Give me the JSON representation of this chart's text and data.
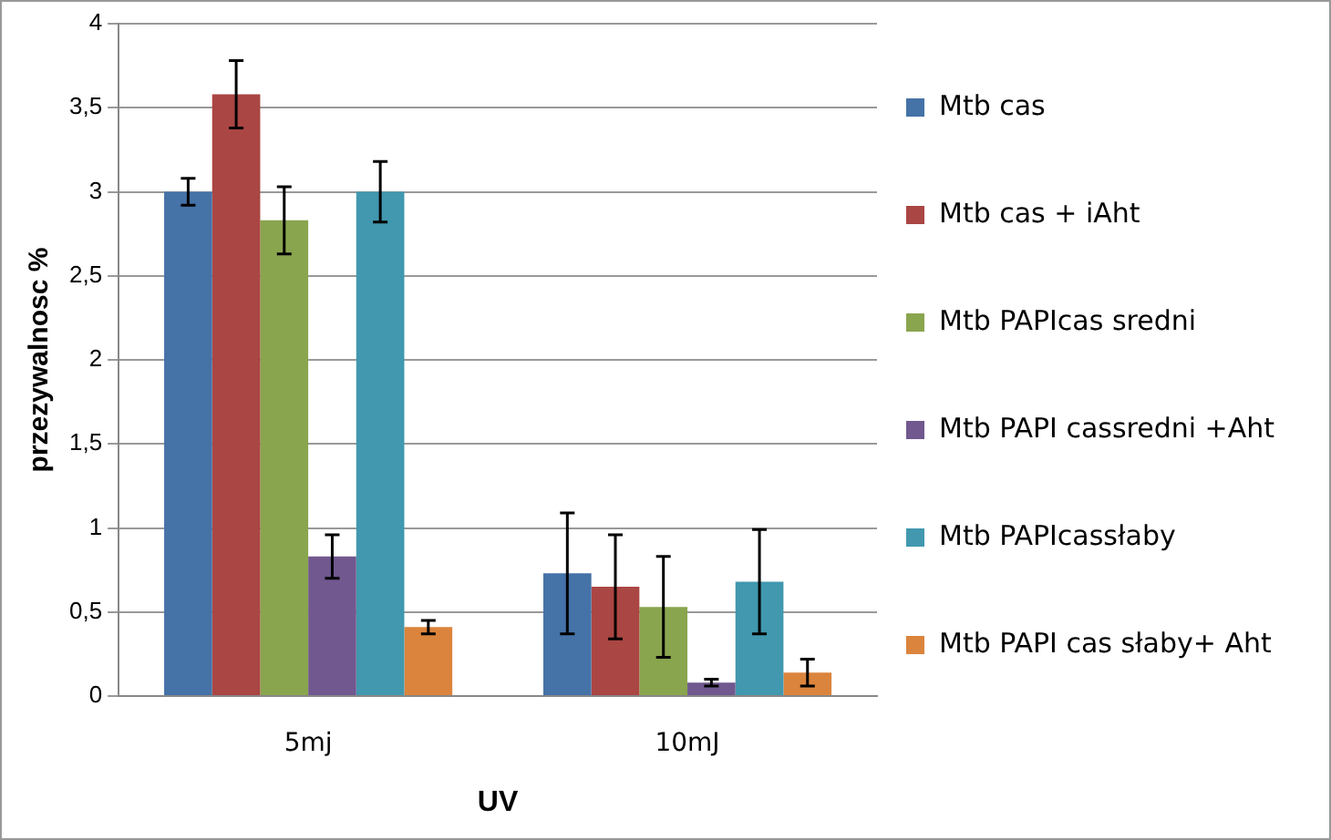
{
  "chart_data": {
    "type": "bar",
    "xlabel": "UV",
    "ylabel": "przezywalnosc %",
    "categories": [
      "5mj",
      "10mJ"
    ],
    "series": [
      {
        "name": "Mtb cas",
        "color": "#4572a7",
        "values": [
          3.0,
          0.73
        ],
        "errors": [
          0.08,
          0.36
        ]
      },
      {
        "name": "Mtb cas + iAht",
        "color": "#aa4643",
        "values": [
          3.58,
          0.65
        ],
        "errors": [
          0.2,
          0.31
        ]
      },
      {
        "name": "Mtb PAPIcas sredni",
        "color": "#89a54e",
        "values": [
          2.83,
          0.53
        ],
        "errors": [
          0.2,
          0.3
        ]
      },
      {
        "name": "Mtb PAPI cassredni +Aht",
        "color": "#71588f",
        "values": [
          0.83,
          0.08
        ],
        "errors": [
          0.13,
          0.02
        ]
      },
      {
        "name": "Mtb PAPIcassłaby",
        "color": "#4198af",
        "values": [
          3.0,
          0.68
        ],
        "errors": [
          0.18,
          0.31
        ]
      },
      {
        "name": "Mtb PAPI cas słaby+ Aht",
        "color": "#db843d",
        "values": [
          0.41,
          0.14
        ],
        "errors": [
          0.04,
          0.08
        ]
      }
    ],
    "ylim": [
      0,
      4
    ],
    "yticks": [
      {
        "value": 0,
        "label": "0"
      },
      {
        "value": 0.5,
        "label": "0,5"
      },
      {
        "value": 1,
        "label": "1"
      },
      {
        "value": 1.5,
        "label": "1,5"
      },
      {
        "value": 2,
        "label": "2"
      },
      {
        "value": 2.5,
        "label": "2,5"
      },
      {
        "value": 3,
        "label": "3"
      },
      {
        "value": 3.5,
        "label": "3,5"
      },
      {
        "value": 4,
        "label": "4"
      }
    ],
    "grid": "y",
    "legend": "right"
  }
}
